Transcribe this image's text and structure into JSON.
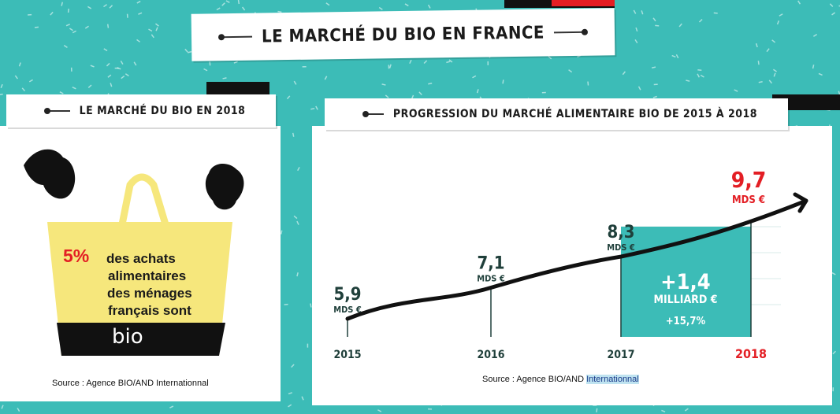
{
  "title": "LE MARCHÉ DU BIO EN FRANCE",
  "left_panel": {
    "title": "LE MARCHÉ DU BIO EN 2018",
    "percent": "5%",
    "text_lines": [
      "des achats",
      "alimentaires",
      "des ménages",
      "français sont"
    ],
    "bio_label": "bio",
    "source": "Source : Agence BIO/AND Internationnal"
  },
  "right_panel": {
    "title": "PROGRESSION DU MARCHÉ ALIMENTAIRE BIO DE 2015 À 2018",
    "source_prefix": "Source : Agence BIO/AND ",
    "source_highlight": "Internationnal"
  },
  "chart_data": {
    "type": "line",
    "x": [
      "2015",
      "2016",
      "2017",
      "2018"
    ],
    "values": [
      5.9,
      7.1,
      8.3,
      9.7
    ],
    "value_labels": [
      "5,9",
      "7,1",
      "8,3",
      "9,7"
    ],
    "unit_label": "MDS €",
    "highlight_year": "2018",
    "annotation": {
      "delta": "+1,4",
      "unit": "MILLIARD €",
      "pct": "+15,7%"
    }
  },
  "colors": {
    "background": "#3cbcb7",
    "teal": "#3cbcb7",
    "red": "#e31e24",
    "bag_yellow": "#f6e77c",
    "black": "#111111"
  }
}
